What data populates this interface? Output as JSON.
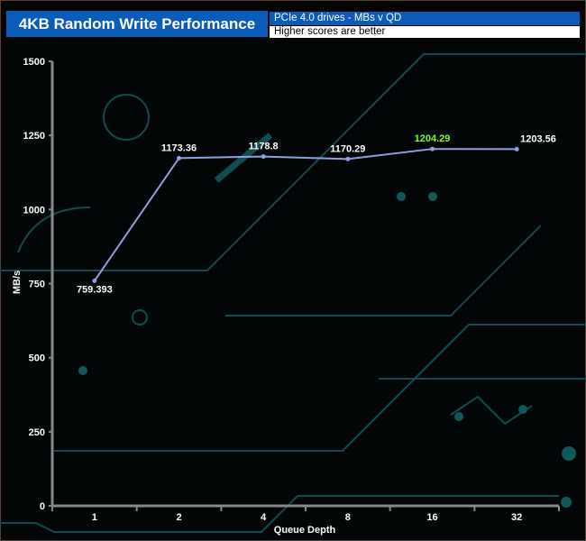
{
  "chart_data": {
    "type": "line",
    "title": "4KB Random Write Performance",
    "subtitle": "PCIe 4.0 drives - MBs v QD",
    "note": "Higher scores are better",
    "xlabel": "Queue Depth",
    "ylabel": "MB/s",
    "categories": [
      "1",
      "2",
      "4",
      "8",
      "16",
      "32"
    ],
    "values": [
      759.393,
      1173.36,
      1178.8,
      1170.29,
      1204.29,
      1203.56
    ],
    "data_labels": [
      "759.393",
      "1173.36",
      "1178.8",
      "1170.29",
      "1204.29",
      "1203.56"
    ],
    "highlight_index": 4,
    "ylim": [
      0,
      1500
    ],
    "yticks": [
      "0",
      "250",
      "500",
      "750",
      "1000",
      "1250",
      "1500"
    ],
    "grid": false,
    "colors": {
      "line": "#8fa0e0",
      "highlight_label": "#7cff2a",
      "label": "#ffffff",
      "header": "#0b5cb8",
      "decor": "#0f4d50"
    }
  }
}
